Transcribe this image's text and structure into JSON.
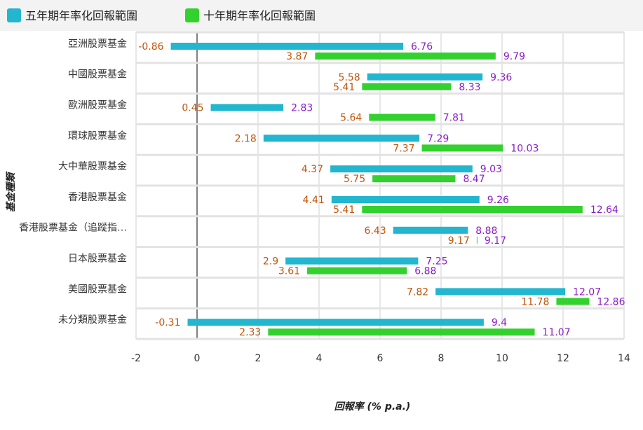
{
  "chart_data": {
    "type": "bar",
    "orientation": "horizontal-range",
    "xlabel": "回報率 (% p.a.)",
    "ylabel": "基金種類",
    "xlim": [
      -2,
      14
    ],
    "xticks": [
      -2,
      0,
      2,
      4,
      6,
      8,
      10,
      12,
      14
    ],
    "grid": true,
    "legend_position": "top-left",
    "categories": [
      "亞洲股票基金",
      "中國股票基金",
      "歐洲股票基金",
      "環球股票基金",
      "大中華股票基金",
      "香港股票基金",
      "香港股票基金（追蹤指…",
      "日本股票基金",
      "美國股票基金",
      "未分類股票基金"
    ],
    "series": [
      {
        "name": "五年期年率化回報範圍",
        "color": "#22b6cf",
        "low": [
          -0.86,
          5.58,
          0.45,
          2.18,
          4.37,
          4.41,
          6.43,
          2.9,
          7.82,
          -0.31
        ],
        "high": [
          6.76,
          9.36,
          2.83,
          7.29,
          9.03,
          9.26,
          8.88,
          7.25,
          12.07,
          9.4
        ],
        "low_labels": [
          "-0.86",
          "5.58",
          "0.45",
          "2.18",
          "4.37",
          "4.41",
          "6.43",
          "2.9",
          "7.82",
          "-0.31"
        ],
        "high_labels": [
          "6.76",
          "9.36",
          "2.83",
          "7.29",
          "9.03",
          "9.26",
          "8.88",
          "7.25",
          "12.07",
          "9.4"
        ]
      },
      {
        "name": "十年期年率化回報範圍",
        "color": "#33d12e",
        "low": [
          3.87,
          5.41,
          5.64,
          7.37,
          5.75,
          5.41,
          9.17,
          3.61,
          11.78,
          2.33
        ],
        "high": [
          9.79,
          8.33,
          7.81,
          10.03,
          8.47,
          12.64,
          9.17,
          6.88,
          12.86,
          11.07
        ],
        "low_labels": [
          "3.87",
          "5.41",
          "5.64",
          "7.37",
          "5.75",
          "5.41",
          "9.17",
          "3.61",
          "11.78",
          "2.33"
        ],
        "high_labels": [
          "9.79",
          "8.33",
          "7.81",
          "10.03",
          "8.47",
          "12.64",
          "9.17",
          "6.88",
          "12.86",
          "11.07"
        ]
      }
    ],
    "colors": {
      "low_label": "#c0560c",
      "high_label": "#8b1ec8"
    }
  }
}
